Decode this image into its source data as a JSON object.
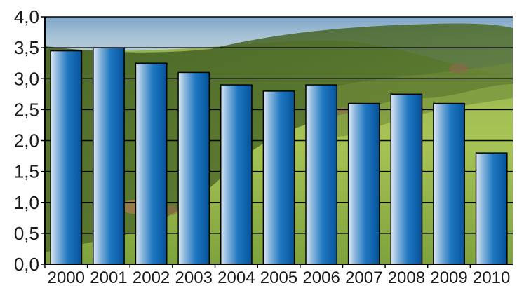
{
  "chart_data": {
    "type": "bar",
    "title": "",
    "xlabel": "",
    "ylabel": "",
    "categories": [
      "2000",
      "2001",
      "2002",
      "2003",
      "2004",
      "2005",
      "2006",
      "2007",
      "2008",
      "2009",
      "2010"
    ],
    "values": [
      3.45,
      3.5,
      3.25,
      3.1,
      2.9,
      2.8,
      2.9,
      2.6,
      2.75,
      2.6,
      1.8
    ],
    "ylim": [
      0,
      4
    ],
    "yticks": [
      "0,0",
      "0,5",
      "1,0",
      "1,5",
      "2,0",
      "2,5",
      "3,0",
      "3,5",
      "4,0"
    ],
    "grid": true,
    "bar_color": "#1a6fb3",
    "background": "landscape-photo"
  }
}
